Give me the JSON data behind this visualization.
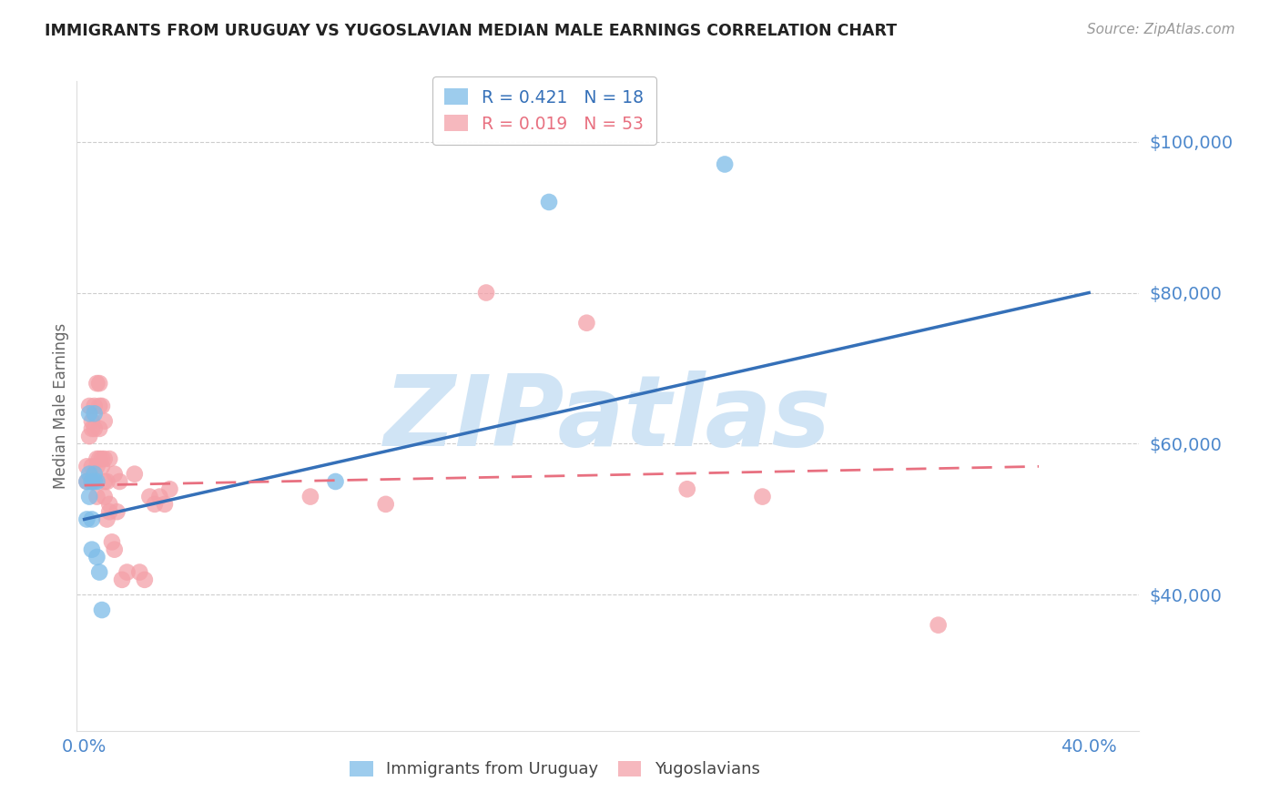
{
  "title": "IMMIGRANTS FROM URUGUAY VS YUGOSLAVIAN MEDIAN MALE EARNINGS CORRELATION CHART",
  "source": "Source: ZipAtlas.com",
  "ylabel": "Median Male Earnings",
  "yticks": [
    40000,
    60000,
    80000,
    100000
  ],
  "ytick_labels": [
    "$40,000",
    "$60,000",
    "$80,000",
    "$100,000"
  ],
  "ymin": 22000,
  "ymax": 108000,
  "xmin": -0.003,
  "xmax": 0.42,
  "uruguay_color": "#7dbce8",
  "yugoslavian_color": "#f4a0a8",
  "trendline_uruguay_color": "#3570b8",
  "trendline_yugoslavian_color": "#e87080",
  "watermark_text": "ZIPatlas",
  "watermark_color": "#d0e4f5",
  "background_color": "#ffffff",
  "grid_color": "#c8c8c8",
  "title_color": "#222222",
  "axis_label_color": "#4d88cc",
  "source_color": "#999999",
  "uruguay_x": [
    0.001,
    0.001,
    0.002,
    0.002,
    0.002,
    0.003,
    0.003,
    0.003,
    0.004,
    0.004,
    0.004,
    0.005,
    0.005,
    0.006,
    0.007,
    0.1,
    0.185,
    0.255
  ],
  "uruguay_y": [
    55000,
    50000,
    64000,
    56000,
    53000,
    55000,
    50000,
    46000,
    64000,
    56000,
    55000,
    55000,
    45000,
    43000,
    38000,
    55000,
    92000,
    97000
  ],
  "yugoslavian_x": [
    0.001,
    0.001,
    0.002,
    0.002,
    0.003,
    0.003,
    0.003,
    0.003,
    0.003,
    0.004,
    0.004,
    0.005,
    0.005,
    0.005,
    0.005,
    0.006,
    0.006,
    0.006,
    0.006,
    0.007,
    0.007,
    0.007,
    0.008,
    0.008,
    0.008,
    0.008,
    0.009,
    0.009,
    0.01,
    0.01,
    0.01,
    0.011,
    0.012,
    0.012,
    0.013,
    0.014,
    0.015,
    0.017,
    0.02,
    0.022,
    0.024,
    0.026,
    0.028,
    0.03,
    0.032,
    0.034,
    0.09,
    0.12,
    0.16,
    0.2,
    0.24,
    0.27,
    0.34
  ],
  "yugoslavian_y": [
    55000,
    57000,
    61000,
    65000,
    55000,
    62000,
    63000,
    57000,
    55000,
    62000,
    65000,
    58000,
    68000,
    57000,
    53000,
    62000,
    68000,
    58000,
    65000,
    65000,
    58000,
    57000,
    63000,
    58000,
    55000,
    53000,
    55000,
    50000,
    58000,
    52000,
    51000,
    47000,
    56000,
    46000,
    51000,
    55000,
    42000,
    43000,
    56000,
    43000,
    42000,
    53000,
    52000,
    53000,
    52000,
    54000,
    53000,
    52000,
    80000,
    76000,
    54000,
    53000,
    36000
  ],
  "trendline_yug_x0": 0.0,
  "trendline_yug_x1": 0.38,
  "trendline_yug_y0": 54500,
  "trendline_yug_y1": 57000,
  "trendline_uru_x0": 0.0,
  "trendline_uru_x1": 0.4,
  "trendline_uru_y0": 50000,
  "trendline_uru_y1": 80000
}
